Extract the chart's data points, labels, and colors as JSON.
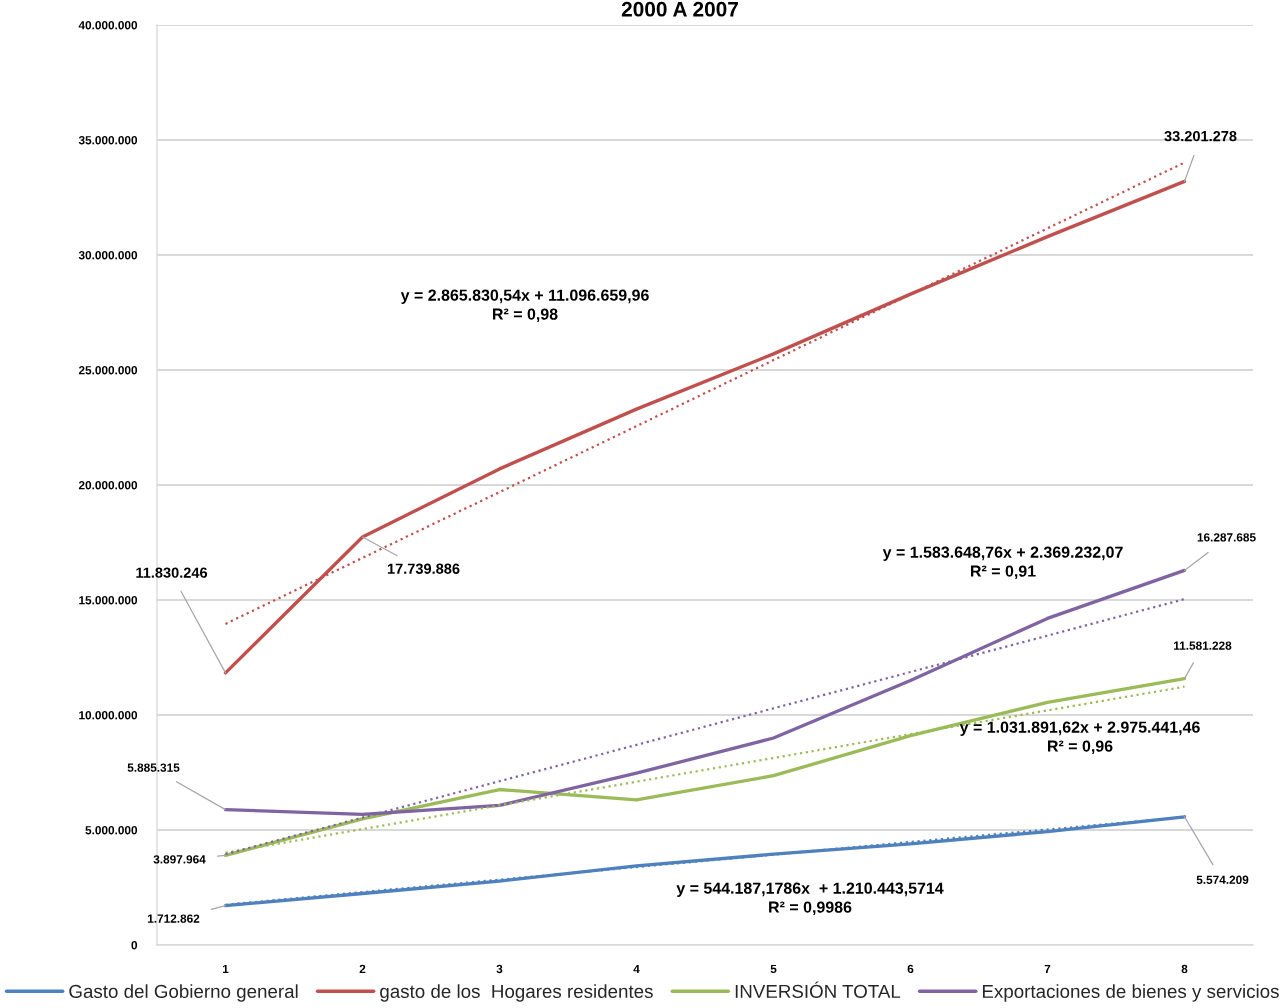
{
  "chart_data": {
    "type": "line",
    "title": "2000 A 2007",
    "x": [
      1,
      2,
      3,
      4,
      5,
      6,
      7,
      8
    ],
    "xlim": [
      0.5,
      8.5
    ],
    "xticks": [
      1,
      2,
      3,
      4,
      5,
      6,
      7,
      8
    ],
    "ylim": [
      0,
      40000000
    ],
    "yticks": [
      0,
      {
        "value": 5000000,
        "label": "5.000.000"
      },
      {
        "value": 10000000,
        "label": "10.000.000"
      },
      {
        "value": 15000000,
        "label": "15.000.000"
      },
      {
        "value": 20000000,
        "label": "20.000.000"
      },
      {
        "value": 25000000,
        "label": "25.000.000"
      },
      {
        "value": 30000000,
        "label": "30.000.000"
      },
      {
        "value": 35000000,
        "label": "35.000.000"
      },
      {
        "value": 40000000,
        "label": "40.000.000"
      }
    ],
    "grid": "y",
    "legend": "bottom",
    "series": [
      {
        "name": "Gasto del Gobierno general",
        "color": "#4f81bd",
        "values": [
          1712862,
          2240000,
          2780000,
          3440000,
          3950000,
          4400000,
          4930000,
          5574209
        ],
        "value_labels": [
          "1.712.862",
          null,
          null,
          null,
          null,
          null,
          null,
          "5.574.209"
        ]
      },
      {
        "name": "gasto de los  Hogares residentes",
        "color": "#c0504d",
        "values": [
          11830246,
          17739886,
          20700000,
          23300000,
          25700000,
          28300000,
          30800000,
          33201278
        ],
        "value_labels": [
          "11.830.246",
          "17.739.886",
          null,
          null,
          null,
          null,
          null,
          "33.201.278"
        ]
      },
      {
        "name": "INVERSIÓN TOTAL",
        "color": "#9bbb59",
        "values": [
          3897964,
          5480000,
          6760000,
          6310000,
          7360000,
          9100000,
          10550000,
          11581228
        ],
        "value_labels": [
          "3.897.964",
          null,
          null,
          null,
          null,
          null,
          null,
          "11.581.228"
        ]
      },
      {
        "name": "Exportaciones de bienes y servicios",
        "color": "#8064a2",
        "values": [
          5885315,
          5680000,
          6070000,
          7470000,
          9000000,
          11500000,
          14200000,
          16287685
        ],
        "value_labels": [
          "5.885.315",
          null,
          null,
          null,
          null,
          null,
          null,
          "16.287.685"
        ]
      },
      {
        "color": "#c0504d",
        "line_style": "dotted",
        "values": [
          13960000,
          16830000,
          19690000,
          22560000,
          25430000,
          28290000,
          31160000,
          34020000
        ]
      },
      {
        "color": "#4f81bd",
        "line_style": "dotted",
        "values": [
          1750000,
          2300000,
          2840000,
          3390000,
          3930000,
          4480000,
          5020000,
          5560000
        ]
      },
      {
        "color": "#9bbb59",
        "line_style": "dotted",
        "values": [
          4010000,
          5040000,
          6070000,
          7100000,
          8130000,
          9170000,
          10200000,
          11230000
        ]
      },
      {
        "color": "#8064a2",
        "line_style": "dotted",
        "values": [
          3950000,
          5540000,
          7120000,
          8700000,
          10290000,
          11870000,
          13450000,
          15040000
        ]
      }
    ],
    "annotations": [
      "y = 2.865.830,54x + 11.096.659,96\nR² = 0,98",
      "y = 1.583.648,76x + 2.369.232,07\nR² = 0,91",
      "y = 1.031.891,62x + 2.975.441,46\nR² = 0,96",
      "y = 544.187,1786x  + 1.210.443,5714\nR² = 0,9986"
    ]
  }
}
